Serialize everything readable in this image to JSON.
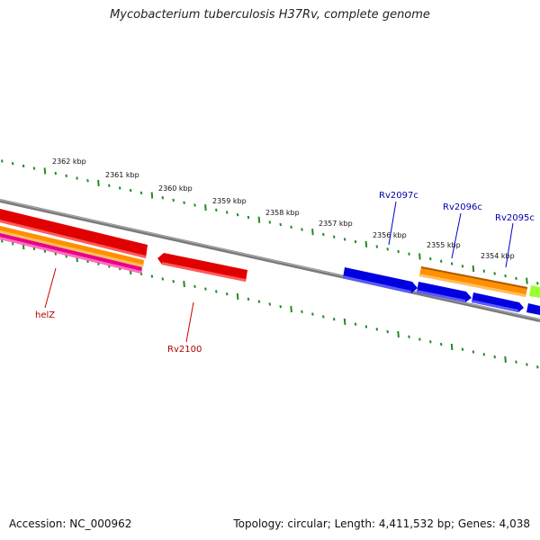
{
  "title": "Mycobacterium tuberculosis H37Rv, complete genome",
  "footer": {
    "accession": "Accession: NC_000962",
    "summary": "Topology: circular; Length: 4,411,532 bp; Genes: 4,038"
  },
  "colors": {
    "backbone": "#808080",
    "tick": "#228B22",
    "forward_label": "#B00000",
    "reverse_label": "#0000AA",
    "red_feature": "#E00000",
    "orange_feature": "#FF9000",
    "pink_feature": "#E8008A",
    "blue_feature": "#0000E0",
    "green_feature": "#99FF33"
  },
  "chart_data": {
    "type": "diagram",
    "scale_labels": [
      "2362 kbp",
      "2361 kbp",
      "2360 kbp",
      "2359 kbp",
      "2358 kbp",
      "2357 kbp",
      "2356 kbp",
      "2355 kbp",
      "2354 kbp"
    ],
    "forward_gene_labels": [
      "helZ",
      "Rv2100"
    ],
    "reverse_gene_labels": [
      "Rv2097c",
      "Rv2096c",
      "Rv2095c"
    ]
  }
}
